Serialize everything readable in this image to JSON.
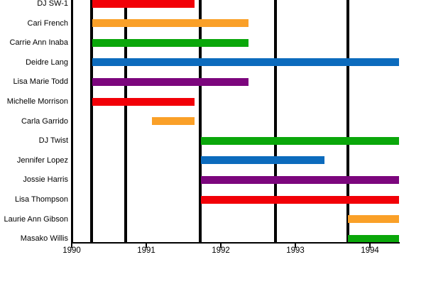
{
  "chart_data": {
    "type": "bar",
    "variant": "horizontal-range-gantt-timeline",
    "title": "",
    "xlabel": "",
    "ylabel": "",
    "grid": true,
    "legend": false,
    "x_axis": {
      "range": [
        1990,
        1994.39
      ],
      "ticks": [
        1990,
        1991,
        1992,
        1993,
        1994
      ],
      "tick_labels": [
        "1990",
        "1991",
        "1992",
        "1993",
        "1994"
      ]
    },
    "gridlines_x": [
      1990.27,
      1990.72,
      1991.72,
      1992.73,
      1993.7
    ],
    "rows": [
      {
        "label": "DJ SW-1",
        "start": 1990.28,
        "end": 1991.65,
        "color": "red"
      },
      {
        "label": "Cari French",
        "start": 1990.28,
        "end": 1992.37,
        "color": "orange"
      },
      {
        "label": "Carrie Ann Inaba",
        "start": 1990.28,
        "end": 1992.37,
        "color": "green"
      },
      {
        "label": "Deidre Lang",
        "start": 1990.28,
        "end": 1994.39,
        "color": "blue"
      },
      {
        "label": "Lisa Marie Todd",
        "start": 1990.28,
        "end": 1992.37,
        "color": "purple"
      },
      {
        "label": "Michelle Morrison",
        "start": 1990.28,
        "end": 1991.65,
        "color": "red"
      },
      {
        "label": "Carla Garrido",
        "start": 1991.08,
        "end": 1991.65,
        "color": "orange"
      },
      {
        "label": "DJ Twist",
        "start": 1991.73,
        "end": 1994.39,
        "color": "green"
      },
      {
        "label": "Jennifer Lopez",
        "start": 1991.73,
        "end": 1993.39,
        "color": "blue"
      },
      {
        "label": "Jossie Harris",
        "start": 1991.73,
        "end": 1994.39,
        "color": "purple"
      },
      {
        "label": "Lisa Thompson",
        "start": 1991.73,
        "end": 1994.39,
        "color": "red"
      },
      {
        "label": "Laurie Ann Gibson",
        "start": 1993.7,
        "end": 1994.39,
        "color": "orange"
      },
      {
        "label": "Masako Willis",
        "start": 1993.7,
        "end": 1994.39,
        "color": "green"
      }
    ],
    "palette": {
      "red": "#f20008",
      "orange": "#faa028",
      "green": "#0aa70a",
      "blue": "#0c6bbd",
      "purple": "#7c067d"
    },
    "axis_color": "#000000",
    "background_color": "#ffffff"
  }
}
